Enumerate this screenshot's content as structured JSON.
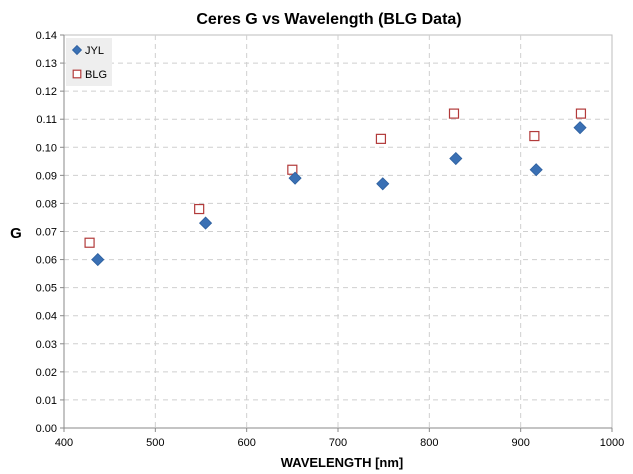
{
  "chart_data": {
    "type": "scatter",
    "title": "Ceres G vs Wavelength (BLG Data)",
    "xlabel": "WAVELENGTH [nm]",
    "ylabel": "G",
    "xlim": [
      400,
      1000
    ],
    "ylim": [
      0,
      0.14
    ],
    "x_ticks": [
      "400",
      "500",
      "600",
      "700",
      "800",
      "900",
      "1000"
    ],
    "y_ticks": [
      "0.00",
      "0.01",
      "0.02",
      "0.03",
      "0.04",
      "0.05",
      "0.06",
      "0.07",
      "0.08",
      "0.09",
      "0.10",
      "0.11",
      "0.12",
      "0.13",
      "0.14"
    ],
    "grid": true,
    "legend_position": "top-left",
    "series": [
      {
        "name": "JYL",
        "marker": "diamond",
        "color": "#3a70b4",
        "points": [
          {
            "x": 437,
            "y": 0.06
          },
          {
            "x": 555,
            "y": 0.073
          },
          {
            "x": 653,
            "y": 0.089
          },
          {
            "x": 749,
            "y": 0.087
          },
          {
            "x": 829,
            "y": 0.096
          },
          {
            "x": 917,
            "y": 0.092
          },
          {
            "x": 965,
            "y": 0.107
          }
        ]
      },
      {
        "name": "BLG",
        "marker": "square-open",
        "color": "#b23a3a",
        "points": [
          {
            "x": 428,
            "y": 0.066
          },
          {
            "x": 548,
            "y": 0.078
          },
          {
            "x": 650,
            "y": 0.092
          },
          {
            "x": 747,
            "y": 0.103
          },
          {
            "x": 827,
            "y": 0.112
          },
          {
            "x": 915,
            "y": 0.104
          },
          {
            "x": 966,
            "y": 0.112
          }
        ]
      }
    ]
  }
}
